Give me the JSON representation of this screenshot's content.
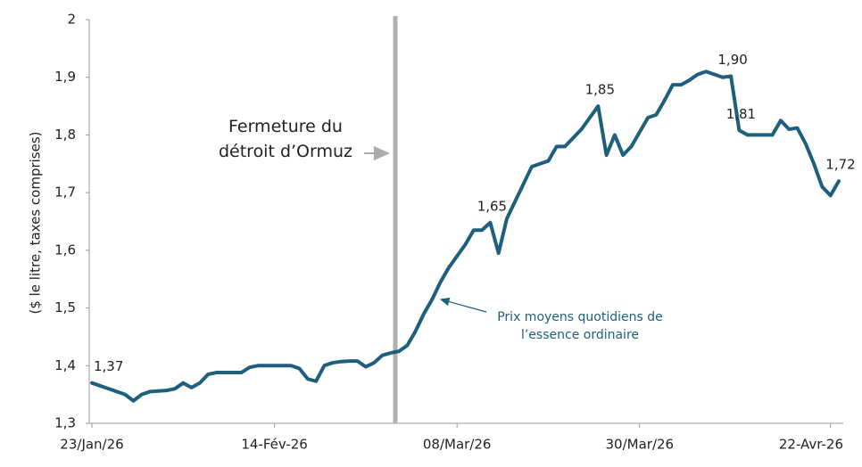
{
  "chart_data": {
    "type": "line",
    "y_label": "($ le litre, taxes comprises)",
    "annotation": "Fermeture du détroit d’Ormuz",
    "categories": [
      "23/Jan/26",
      null,
      null,
      null,
      null,
      null,
      null,
      null,
      null,
      null,
      null,
      null,
      null,
      null,
      null,
      null,
      null,
      null,
      null,
      null,
      null,
      null,
      "14-Fév-26",
      null,
      null,
      null,
      null,
      null,
      null,
      null,
      null,
      null,
      null,
      null,
      null,
      null,
      null,
      null,
      null,
      null,
      null,
      null,
      null,
      null,
      "08/Mar/26",
      null,
      null,
      null,
      null,
      null,
      null,
      null,
      null,
      null,
      null,
      null,
      null,
      null,
      null,
      null,
      null,
      null,
      null,
      null,
      null,
      null,
      "30/Mar/26",
      null,
      null,
      null,
      null,
      null,
      null,
      null,
      null,
      null,
      null,
      null,
      null,
      null,
      null,
      null,
      null,
      null,
      null,
      null,
      null,
      null,
      null,
      "22-Avr-26",
      null
    ],
    "series": [
      {
        "name": "Prix moyens quotidiens de l’essence ordinaire",
        "color": "#1e5f7e",
        "values": [
          1.37,
          1.365,
          1.36,
          1.355,
          1.35,
          1.339,
          1.35,
          1.355,
          1.356,
          1.357,
          1.36,
          1.37,
          1.362,
          1.37,
          1.385,
          1.388,
          1.388,
          1.388,
          1.388,
          1.397,
          1.4,
          1.4,
          1.4,
          1.4,
          1.4,
          1.395,
          1.377,
          1.373,
          1.4,
          1.405,
          1.407,
          1.408,
          1.408,
          1.398,
          1.405,
          1.418,
          1.422,
          1.425,
          1.435,
          1.46,
          1.49,
          1.515,
          1.545,
          1.57,
          1.59,
          1.61,
          1.635,
          1.635,
          1.648,
          1.595,
          1.655,
          1.685,
          1.715,
          1.745,
          1.75,
          1.755,
          1.78,
          1.78,
          1.795,
          1.81,
          1.83,
          1.85,
          1.765,
          1.8,
          1.765,
          1.78,
          1.805,
          1.83,
          1.835,
          1.86,
          1.887,
          1.887,
          1.895,
          1.905,
          1.91,
          1.905,
          1.9,
          1.902,
          1.808,
          1.8,
          1.8,
          1.8,
          1.8,
          1.825,
          1.81,
          1.812,
          1.785,
          1.75,
          1.71,
          1.695,
          1.72
        ],
        "value_labels": [
          "1,37",
          null,
          null,
          null,
          null,
          null,
          null,
          null,
          null,
          null,
          null,
          null,
          null,
          null,
          null,
          null,
          null,
          null,
          null,
          null,
          null,
          null,
          null,
          null,
          null,
          null,
          null,
          null,
          null,
          null,
          null,
          null,
          null,
          null,
          null,
          null,
          null,
          null,
          null,
          null,
          null,
          null,
          null,
          null,
          null,
          null,
          null,
          null,
          "1,65",
          null,
          null,
          null,
          null,
          null,
          null,
          null,
          null,
          null,
          null,
          null,
          null,
          "1,85",
          null,
          null,
          null,
          null,
          null,
          null,
          null,
          null,
          null,
          null,
          null,
          null,
          null,
          null,
          null,
          "1,90",
          "1,81",
          null,
          null,
          null,
          null,
          null,
          null,
          null,
          null,
          null,
          null,
          null,
          "1,72"
        ]
      }
    ],
    "ylim": [
      1.3,
      2
    ],
    "yticks": [
      {
        "value": 1.3,
        "label": "1,3"
      },
      {
        "value": 1.4,
        "label": "1,4"
      },
      {
        "value": 1.5,
        "label": "1,5"
      },
      {
        "value": 1.6,
        "label": "1,6"
      },
      {
        "value": 1.7,
        "label": "1,7"
      },
      {
        "value": 1.8,
        "label": "1,8"
      },
      {
        "value": 1.9,
        "label": "1,9"
      },
      2
    ],
    "grid": false
  }
}
